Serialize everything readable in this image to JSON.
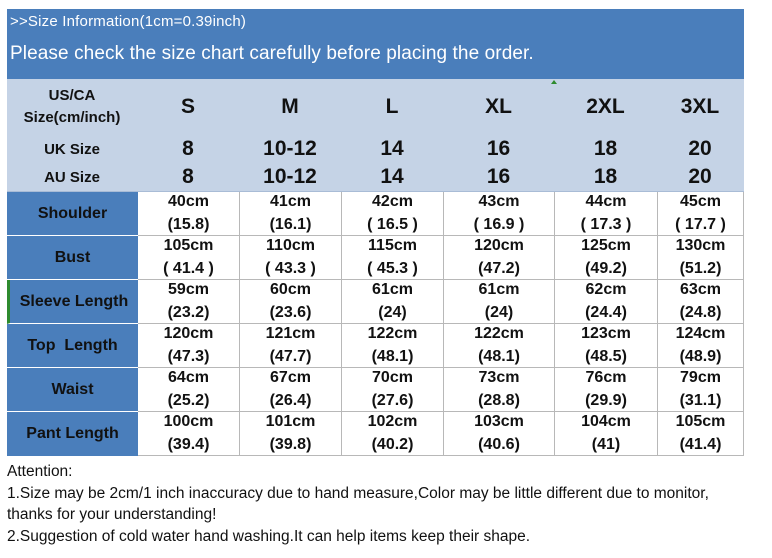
{
  "banner": {
    "small": ">>Size Information(1cm=0.39inch)",
    "big": "Please check the size chart carefully before placing the order."
  },
  "header": {
    "us_label_1": "US/CA",
    "us_label_2": "Size(cm/inch)",
    "us_values": [
      "S",
      "M",
      "L",
      "XL",
      "2XL",
      "3XL"
    ],
    "uk_label": "UK Size",
    "uk_values": [
      "8",
      "10-12",
      "14",
      "16",
      "18",
      "20"
    ],
    "au_label": "AU Size",
    "au_values": [
      "8",
      "10-12",
      "14",
      "16",
      "18",
      "20"
    ]
  },
  "rows": [
    {
      "label": "Shoulder",
      "cm": [
        "40cm",
        "41cm",
        "42cm",
        "43cm",
        "44cm",
        "45cm"
      ],
      "inch": [
        "(15.8)",
        "(16.1)",
        "( 16.5 )",
        "( 16.9 )",
        "( 17.3 )",
        "( 17.7 )"
      ]
    },
    {
      "label": "Bust",
      "cm": [
        "105cm",
        "110cm",
        "115cm",
        "120cm",
        "125cm",
        "130cm"
      ],
      "inch": [
        "( 41.4 )",
        "( 43.3 )",
        "( 45.3 )",
        "(47.2)",
        "(49.2)",
        "(51.2)"
      ]
    },
    {
      "label": "Sleeve Length",
      "cm": [
        "59cm",
        "60cm",
        "61cm",
        "61cm",
        "62cm",
        "63cm"
      ],
      "inch": [
        "(23.2)",
        "(23.6)",
        "(24)",
        "(24)",
        "(24.4)",
        "(24.8)"
      ]
    },
    {
      "label": "Top  Length",
      "cm": [
        "120cm",
        "121cm",
        "122cm",
        "122cm",
        "123cm",
        "124cm"
      ],
      "inch": [
        "(47.3)",
        "(47.7)",
        "(48.1)",
        "(48.1)",
        "(48.5)",
        "(48.9)"
      ]
    },
    {
      "label": "Waist",
      "cm": [
        "64cm",
        "67cm",
        "70cm",
        "73cm",
        "76cm",
        "79cm"
      ],
      "inch": [
        "(25.2)",
        "(26.4)",
        "(27.6)",
        "(28.8)",
        "(29.9)",
        "(31.1)"
      ]
    },
    {
      "label": "Pant Length",
      "cm": [
        "100cm",
        "101cm",
        "102cm",
        "103cm",
        "104cm",
        "105cm"
      ],
      "inch": [
        "(39.4)",
        "(39.8)",
        "(40.2)",
        "(40.6)",
        "(41)",
        "(41.4)"
      ]
    }
  ],
  "notes": {
    "title": "Attention:",
    "line1": "1.Size may be 2cm/1 inch inaccuracy due to hand measure,Color may be little different due to monitor,",
    "line2": "thanks for your understanding!",
    "line3": "2.Suggestion of cold water hand washing.It can help items keep their shape."
  },
  "colors": {
    "accent": "#4a7ebb",
    "header_bg": "#c5d3e6"
  }
}
